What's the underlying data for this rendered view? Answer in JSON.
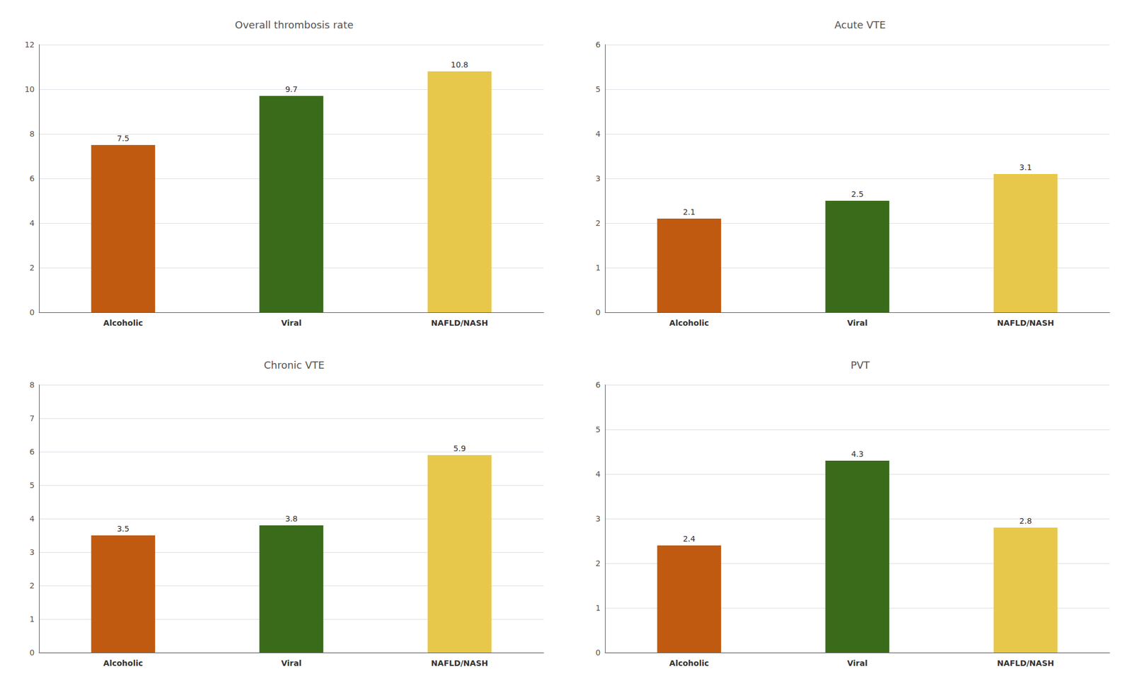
{
  "chart_data": [
    {
      "type": "bar",
      "title": "Overall thrombosis rate",
      "categories": [
        "Alcoholic",
        "Viral",
        "NAFLD/NASH"
      ],
      "values": [
        7.5,
        9.7,
        10.8
      ],
      "colors": [
        "#c05a10",
        "#3a6b1a",
        "#e8c84a"
      ],
      "ylim": [
        0,
        12
      ],
      "yticks": [
        0,
        2,
        4,
        6,
        8,
        10,
        12
      ],
      "grid": true,
      "data_labels": true
    },
    {
      "type": "bar",
      "title": "Acute VTE",
      "categories": [
        "Alcoholic",
        "Viral",
        "NAFLD/NASH"
      ],
      "values": [
        2.1,
        2.5,
        3.1
      ],
      "colors": [
        "#c05a10",
        "#3a6b1a",
        "#e8c84a"
      ],
      "ylim": [
        0,
        6
      ],
      "yticks": [
        0,
        1,
        2,
        3,
        4,
        5,
        6
      ],
      "grid": true,
      "data_labels": true
    },
    {
      "type": "bar",
      "title": "Chronic VTE",
      "categories": [
        "Alcoholic",
        "Viral",
        "NAFLD/NASH"
      ],
      "values": [
        3.5,
        3.8,
        5.9
      ],
      "colors": [
        "#c05a10",
        "#3a6b1a",
        "#e8c84a"
      ],
      "ylim": [
        0,
        8
      ],
      "yticks": [
        0,
        1,
        2,
        3,
        4,
        5,
        6,
        7,
        8
      ],
      "grid": true,
      "data_labels": true
    },
    {
      "type": "bar",
      "title": "PVT",
      "categories": [
        "Alcoholic",
        "Viral",
        "NAFLD/NASH"
      ],
      "values": [
        2.4,
        4.3,
        2.8
      ],
      "colors": [
        "#c05a10",
        "#3a6b1a",
        "#e8c84a"
      ],
      "ylim": [
        0,
        6
      ],
      "yticks": [
        0,
        1,
        2,
        3,
        4,
        5,
        6
      ],
      "grid": true,
      "data_labels": true
    }
  ]
}
